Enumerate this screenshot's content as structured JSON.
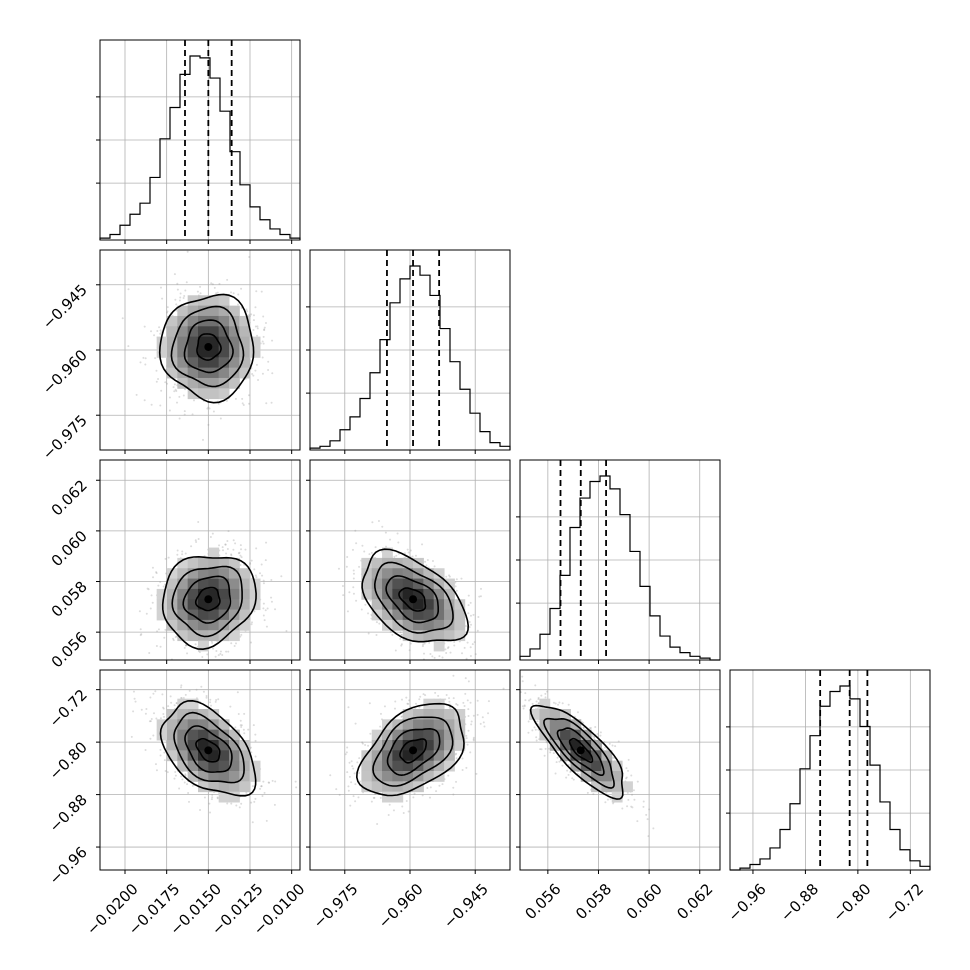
{
  "chart_data": {
    "type": "corner",
    "grid": true,
    "params": [
      {
        "range": [
          -0.0215,
          -0.0095
        ],
        "ticks": [
          -0.02,
          -0.0175,
          -0.015,
          -0.0125,
          -0.01
        ],
        "tick_labels": [
          "−0.0200",
          "−0.0175",
          "−0.0150",
          "−0.0125",
          "−0.0100"
        ],
        "quantiles": [
          -0.0164,
          -0.015,
          -0.0136
        ],
        "median": -0.015,
        "sigma": 0.0014
      },
      {
        "range": [
          -0.983,
          -0.937
        ],
        "ticks": [
          -0.975,
          -0.96,
          -0.945
        ],
        "tick_labels": [
          "−0.975",
          "−0.960",
          "−0.945"
        ],
        "quantiles": [
          -0.9653,
          -0.9593,
          -0.9533
        ],
        "median": -0.9593,
        "sigma": 0.006
      },
      {
        "range": [
          0.0549,
          0.0628
        ],
        "ticks": [
          0.056,
          0.058,
          0.06,
          0.062
        ],
        "tick_labels": [
          "0.056",
          "0.058",
          "0.060",
          "0.062"
        ],
        "quantiles": [
          0.0565,
          0.0573,
          0.0583
        ],
        "median": 0.0573,
        "sigma": 0.0009
      },
      {
        "range": [
          -0.995,
          -0.69
        ],
        "ticks": [
          -0.96,
          -0.88,
          -0.8,
          -0.72
        ],
        "tick_labels": [
          "−0.96",
          "−0.88",
          "−0.80",
          "−0.72"
        ],
        "quantiles": [
          -0.8575,
          -0.8125,
          -0.7855
        ],
        "median": -0.8125,
        "sigma": 0.035
      }
    ],
    "histograms": [
      [
        0.01,
        0.03,
        0.08,
        0.14,
        0.2,
        0.34,
        0.55,
        0.72,
        0.9,
        1.0,
        0.99,
        0.88,
        0.7,
        0.48,
        0.3,
        0.18,
        0.11,
        0.06,
        0.03,
        0.01
      ],
      [
        0.01,
        0.02,
        0.05,
        0.11,
        0.18,
        0.28,
        0.42,
        0.6,
        0.8,
        0.93,
        1.0,
        0.95,
        0.84,
        0.66,
        0.48,
        0.33,
        0.2,
        0.1,
        0.04,
        0.02
      ],
      [
        0.02,
        0.06,
        0.14,
        0.28,
        0.46,
        0.72,
        0.88,
        0.97,
        1.0,
        0.93,
        0.79,
        0.59,
        0.4,
        0.24,
        0.13,
        0.07,
        0.04,
        0.02,
        0.01,
        0.0
      ],
      [
        0.0,
        0.01,
        0.03,
        0.06,
        0.12,
        0.22,
        0.36,
        0.55,
        0.73,
        0.89,
        0.97,
        1.0,
        0.93,
        0.78,
        0.57,
        0.37,
        0.22,
        0.11,
        0.05,
        0.02
      ]
    ],
    "correlations": {
      "1-0": 0.0,
      "2-0": 0.12,
      "3-0": -0.45,
      "2-1": -0.45,
      "3-1": 0.45,
      "3-2": -0.8
    }
  }
}
